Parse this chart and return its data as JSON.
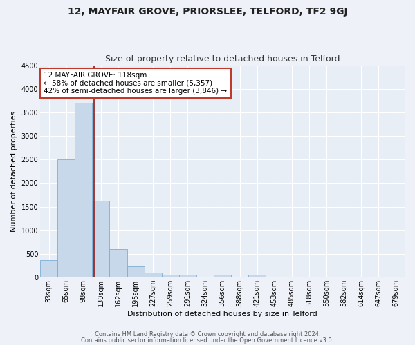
{
  "title1": "12, MAYFAIR GROVE, PRIORSLEE, TELFORD, TF2 9GJ",
  "title2": "Size of property relative to detached houses in Telford",
  "xlabel": "Distribution of detached houses by size in Telford",
  "ylabel": "Number of detached properties",
  "bins": [
    "33sqm",
    "65sqm",
    "98sqm",
    "130sqm",
    "162sqm",
    "195sqm",
    "227sqm",
    "259sqm",
    "291sqm",
    "324sqm",
    "356sqm",
    "388sqm",
    "421sqm",
    "453sqm",
    "485sqm",
    "518sqm",
    "550sqm",
    "582sqm",
    "614sqm",
    "647sqm",
    "679sqm"
  ],
  "values": [
    375,
    2500,
    3700,
    1620,
    600,
    240,
    100,
    60,
    55,
    0,
    55,
    0,
    55,
    0,
    0,
    0,
    0,
    0,
    0,
    0,
    0
  ],
  "bar_color": "#c8d8eb",
  "bar_edge_color": "#7bafd4",
  "vline_color": "#8b1a1a",
  "vline_pos": 2.62,
  "annotation_title": "12 MAYFAIR GROVE: 118sqm",
  "annotation_line1": "← 58% of detached houses are smaller (5,357)",
  "annotation_line2": "42% of semi-detached houses are larger (3,846) →",
  "annotation_box_facecolor": "#ffffff",
  "annotation_box_edgecolor": "#c0392b",
  "ylim_max": 4500,
  "yticks": [
    0,
    500,
    1000,
    1500,
    2000,
    2500,
    3000,
    3500,
    4000,
    4500
  ],
  "footer1": "Contains HM Land Registry data © Crown copyright and database right 2024.",
  "footer2": "Contains public sector information licensed under the Open Government Licence v3.0.",
  "fig_bg_color": "#eef2f8",
  "plot_bg_color": "#e8eef6",
  "grid_color": "#ffffff",
  "title1_fontsize": 10,
  "title2_fontsize": 9,
  "axis_label_fontsize": 8,
  "tick_fontsize": 7,
  "ann_fontsize": 7.5,
  "footer_fontsize": 6
}
